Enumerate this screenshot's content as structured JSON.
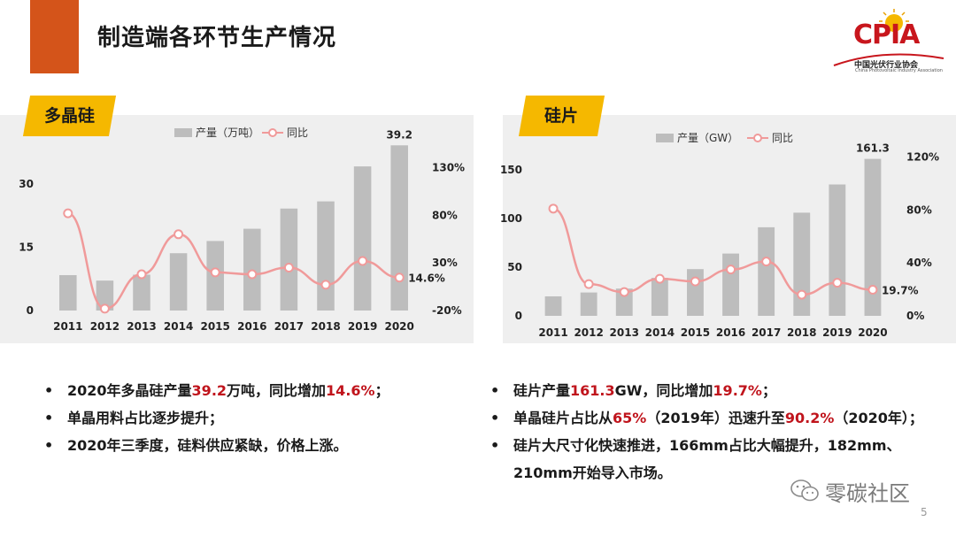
{
  "page": {
    "title": "制造端各环节生产情况",
    "page_number": "5",
    "watermark": "零碳社区"
  },
  "logo": {
    "text": "CPIA",
    "subtitle_cn": "中国光伏行业协会",
    "subtitle_en": "China Photovoltaic Industry Association"
  },
  "colors": {
    "accent": "#d4541a",
    "tag": "#f5b800",
    "bar": "#bdbdbd",
    "line": "#f09a9a",
    "highlight": "#c0141c"
  },
  "left": {
    "tag": "多晶硅",
    "bullets": [
      {
        "parts": [
          {
            "t": "2020年多晶硅产量"
          },
          {
            "t": "39.2",
            "hl": true
          },
          {
            "t": "万吨，同比增加"
          },
          {
            "t": "14.6%",
            "hl": true
          },
          {
            "t": "；"
          }
        ]
      },
      {
        "parts": [
          {
            "t": "单晶用料占比逐步提升；"
          }
        ]
      },
      {
        "parts": [
          {
            "t": "2020年三季度，硅料供应紧缺，价格上涨。"
          }
        ]
      }
    ]
  },
  "right": {
    "tag": "硅片",
    "bullets": [
      {
        "parts": [
          {
            "t": "硅片产量"
          },
          {
            "t": "161.3",
            "hl": true
          },
          {
            "t": "GW，同比增加"
          },
          {
            "t": "19.7%",
            "hl": true
          },
          {
            "t": "；"
          }
        ]
      },
      {
        "parts": [
          {
            "t": "单晶硅片占比从"
          },
          {
            "t": "65%",
            "hl": true
          },
          {
            "t": "（2019年）迅速升至"
          },
          {
            "t": "90.2%",
            "hl": true
          },
          {
            "t": "（2020年）；"
          }
        ]
      },
      {
        "parts": [
          {
            "t": "硅片大尺寸化快速推进，166mm占比大幅提升，182mm、"
          }
        ]
      },
      {
        "parts": [
          {
            "t": "210mm开始导入市场。"
          }
        ],
        "continuation": true
      }
    ]
  },
  "chart_data": [
    {
      "type": "bar+line",
      "categories": [
        "2011",
        "2012",
        "2013",
        "2014",
        "2015",
        "2016",
        "2017",
        "2018",
        "2019",
        "2020"
      ],
      "series": [
        {
          "name": "产量（万吨）",
          "type": "bar",
          "axis": "left",
          "values": [
            8.4,
            7.1,
            8.5,
            13.6,
            16.5,
            19.4,
            24.2,
            25.9,
            34.2,
            39.2
          ]
        },
        {
          "name": "同比",
          "type": "line",
          "axis": "right",
          "values": [
            82,
            -18,
            18,
            60,
            20,
            18,
            25,
            7,
            32,
            14.6
          ]
        }
      ],
      "ylim_left": [
        0,
        38
      ],
      "yticks_left": [
        0,
        15,
        30
      ],
      "ylim_right": [
        -20,
        148
      ],
      "yticks_right": [
        "-20%",
        "30%",
        "80%",
        "130%"
      ],
      "yticks_right_values": [
        -20,
        30,
        80,
        130
      ],
      "data_labels": [
        {
          "series": 0,
          "index": 9,
          "text": "39.2"
        },
        {
          "series": 1,
          "index": 9,
          "text": "14.6%"
        }
      ],
      "legend": "top"
    },
    {
      "type": "bar+line",
      "categories": [
        "2011",
        "2012",
        "2013",
        "2014",
        "2015",
        "2016",
        "2017",
        "2018",
        "2019",
        "2020"
      ],
      "series": [
        {
          "name": "产量（GW）",
          "type": "bar",
          "axis": "left",
          "values": [
            20,
            24,
            28,
            39,
            48,
            64,
            91,
            106,
            135,
            161.3
          ]
        },
        {
          "name": "同比",
          "type": "line",
          "axis": "right",
          "values": [
            81,
            24,
            18,
            28,
            26,
            35,
            41,
            16,
            25,
            19.7
          ]
        }
      ],
      "ylim_left": [
        0,
        170
      ],
      "yticks_left": [
        0,
        50,
        100,
        150
      ],
      "ylim_right": [
        0,
        125
      ],
      "yticks_right": [
        "0%",
        "40%",
        "80%",
        "120%"
      ],
      "yticks_right_values": [
        0,
        40,
        80,
        120
      ],
      "data_labels": [
        {
          "series": 0,
          "index": 9,
          "text": "161.3"
        },
        {
          "series": 1,
          "index": 9,
          "text": "19.7%"
        }
      ],
      "legend": "top"
    }
  ]
}
